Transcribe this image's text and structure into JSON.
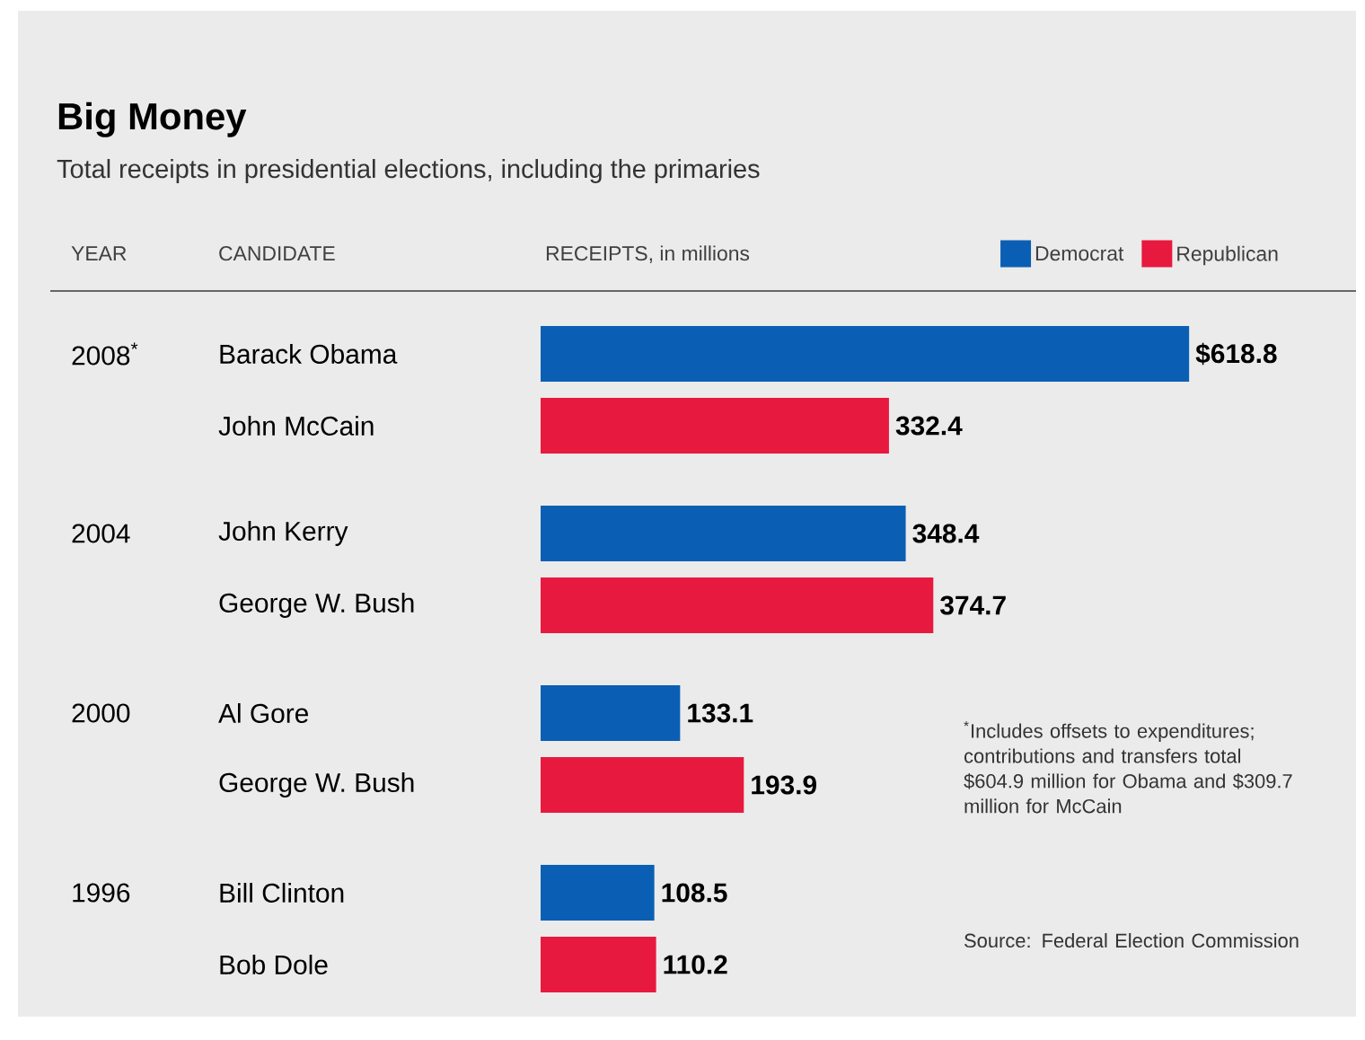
{
  "chart_data": {
    "type": "bar",
    "orientation": "horizontal",
    "title": "Big Money",
    "subtitle": "Total receipts in presidential elections, including the primaries",
    "xlabel": "RECEIPTS, in millions",
    "ylabel": "CANDIDATE",
    "categories": [
      "Barack Obama",
      "John McCain",
      "John Kerry",
      "George W. Bush",
      "Al Gore",
      "George W. Bush",
      "Bill Clinton",
      "Bob Dole"
    ],
    "series": [
      {
        "name": "Democrat",
        "color": "#0a5fb4",
        "values": [
          618.8,
          null,
          348.4,
          null,
          133.1,
          null,
          108.5,
          null
        ],
        "value_labels": [
          "$618.8",
          null,
          "348.4",
          null,
          "133.1",
          null,
          "108.5",
          null
        ]
      },
      {
        "name": "Republican",
        "color": "#e8193f",
        "values": [
          null,
          332.4,
          null,
          374.7,
          null,
          193.9,
          null,
          110.2
        ],
        "value_labels": [
          null,
          "332.4",
          null,
          "374.7",
          null,
          "193.9",
          null,
          "110.2"
        ]
      }
    ],
    "legend": "top right",
    "annotations": [
      "YEAR",
      "2008$^{*}$",
      "2004",
      "2000",
      "1996",
      "$^{*}$Includes offsets to expenditures; contributions and transfers total $604.9 million for Obama and $309.7 million for McCain",
      "Source: Federal Election Commission"
    ]
  }
}
